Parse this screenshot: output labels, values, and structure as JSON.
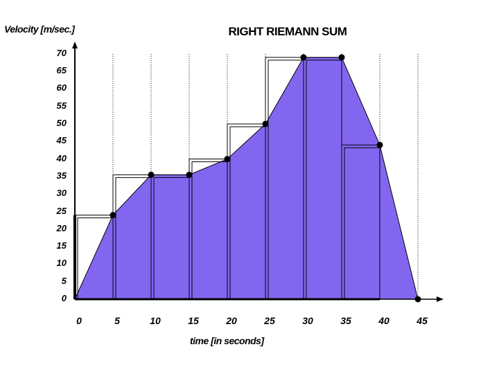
{
  "chart_data": {
    "type": "area",
    "title": "RIGHT RIEMANN SUM",
    "xlabel": "time [in seconds]",
    "ylabel": "Velocity [m/sec.]",
    "x_ticks": [
      "0",
      "5",
      "10",
      "15",
      "20",
      "25",
      "30",
      "35",
      "40",
      "45"
    ],
    "y_ticks": [
      "0",
      "5",
      "10",
      "15",
      "20",
      "25",
      "30",
      "35",
      "40",
      "45",
      "50",
      "55",
      "60",
      "65",
      "70"
    ],
    "xlim": [
      0,
      45
    ],
    "ylim": [
      0,
      70
    ],
    "grid": "vertical dotted lines at x tick positions",
    "series": [
      {
        "name": "velocity",
        "x": [
          0,
          5,
          10,
          15,
          20,
          25,
          30,
          35,
          40,
          45
        ],
        "values": [
          0,
          24,
          35.5,
          35.5,
          40,
          50,
          69,
          69,
          44,
          0
        ],
        "fill": "#8366f0"
      }
    ],
    "right_riemann_rectangles": [
      {
        "x0": 0,
        "x1": 5,
        "height": 24
      },
      {
        "x0": 5,
        "x1": 10,
        "height": 35.5
      },
      {
        "x0": 10,
        "x1": 15,
        "height": 35.5
      },
      {
        "x0": 15,
        "x1": 20,
        "height": 40
      },
      {
        "x0": 20,
        "x1": 25,
        "height": 50
      },
      {
        "x0": 25,
        "x1": 30,
        "height": 69
      },
      {
        "x0": 30,
        "x1": 35,
        "height": 69
      },
      {
        "x0": 35,
        "x1": 40,
        "height": 44
      }
    ]
  },
  "colors": {
    "fill": "#8366f0",
    "line": "#000000",
    "background": "#ffffff"
  }
}
